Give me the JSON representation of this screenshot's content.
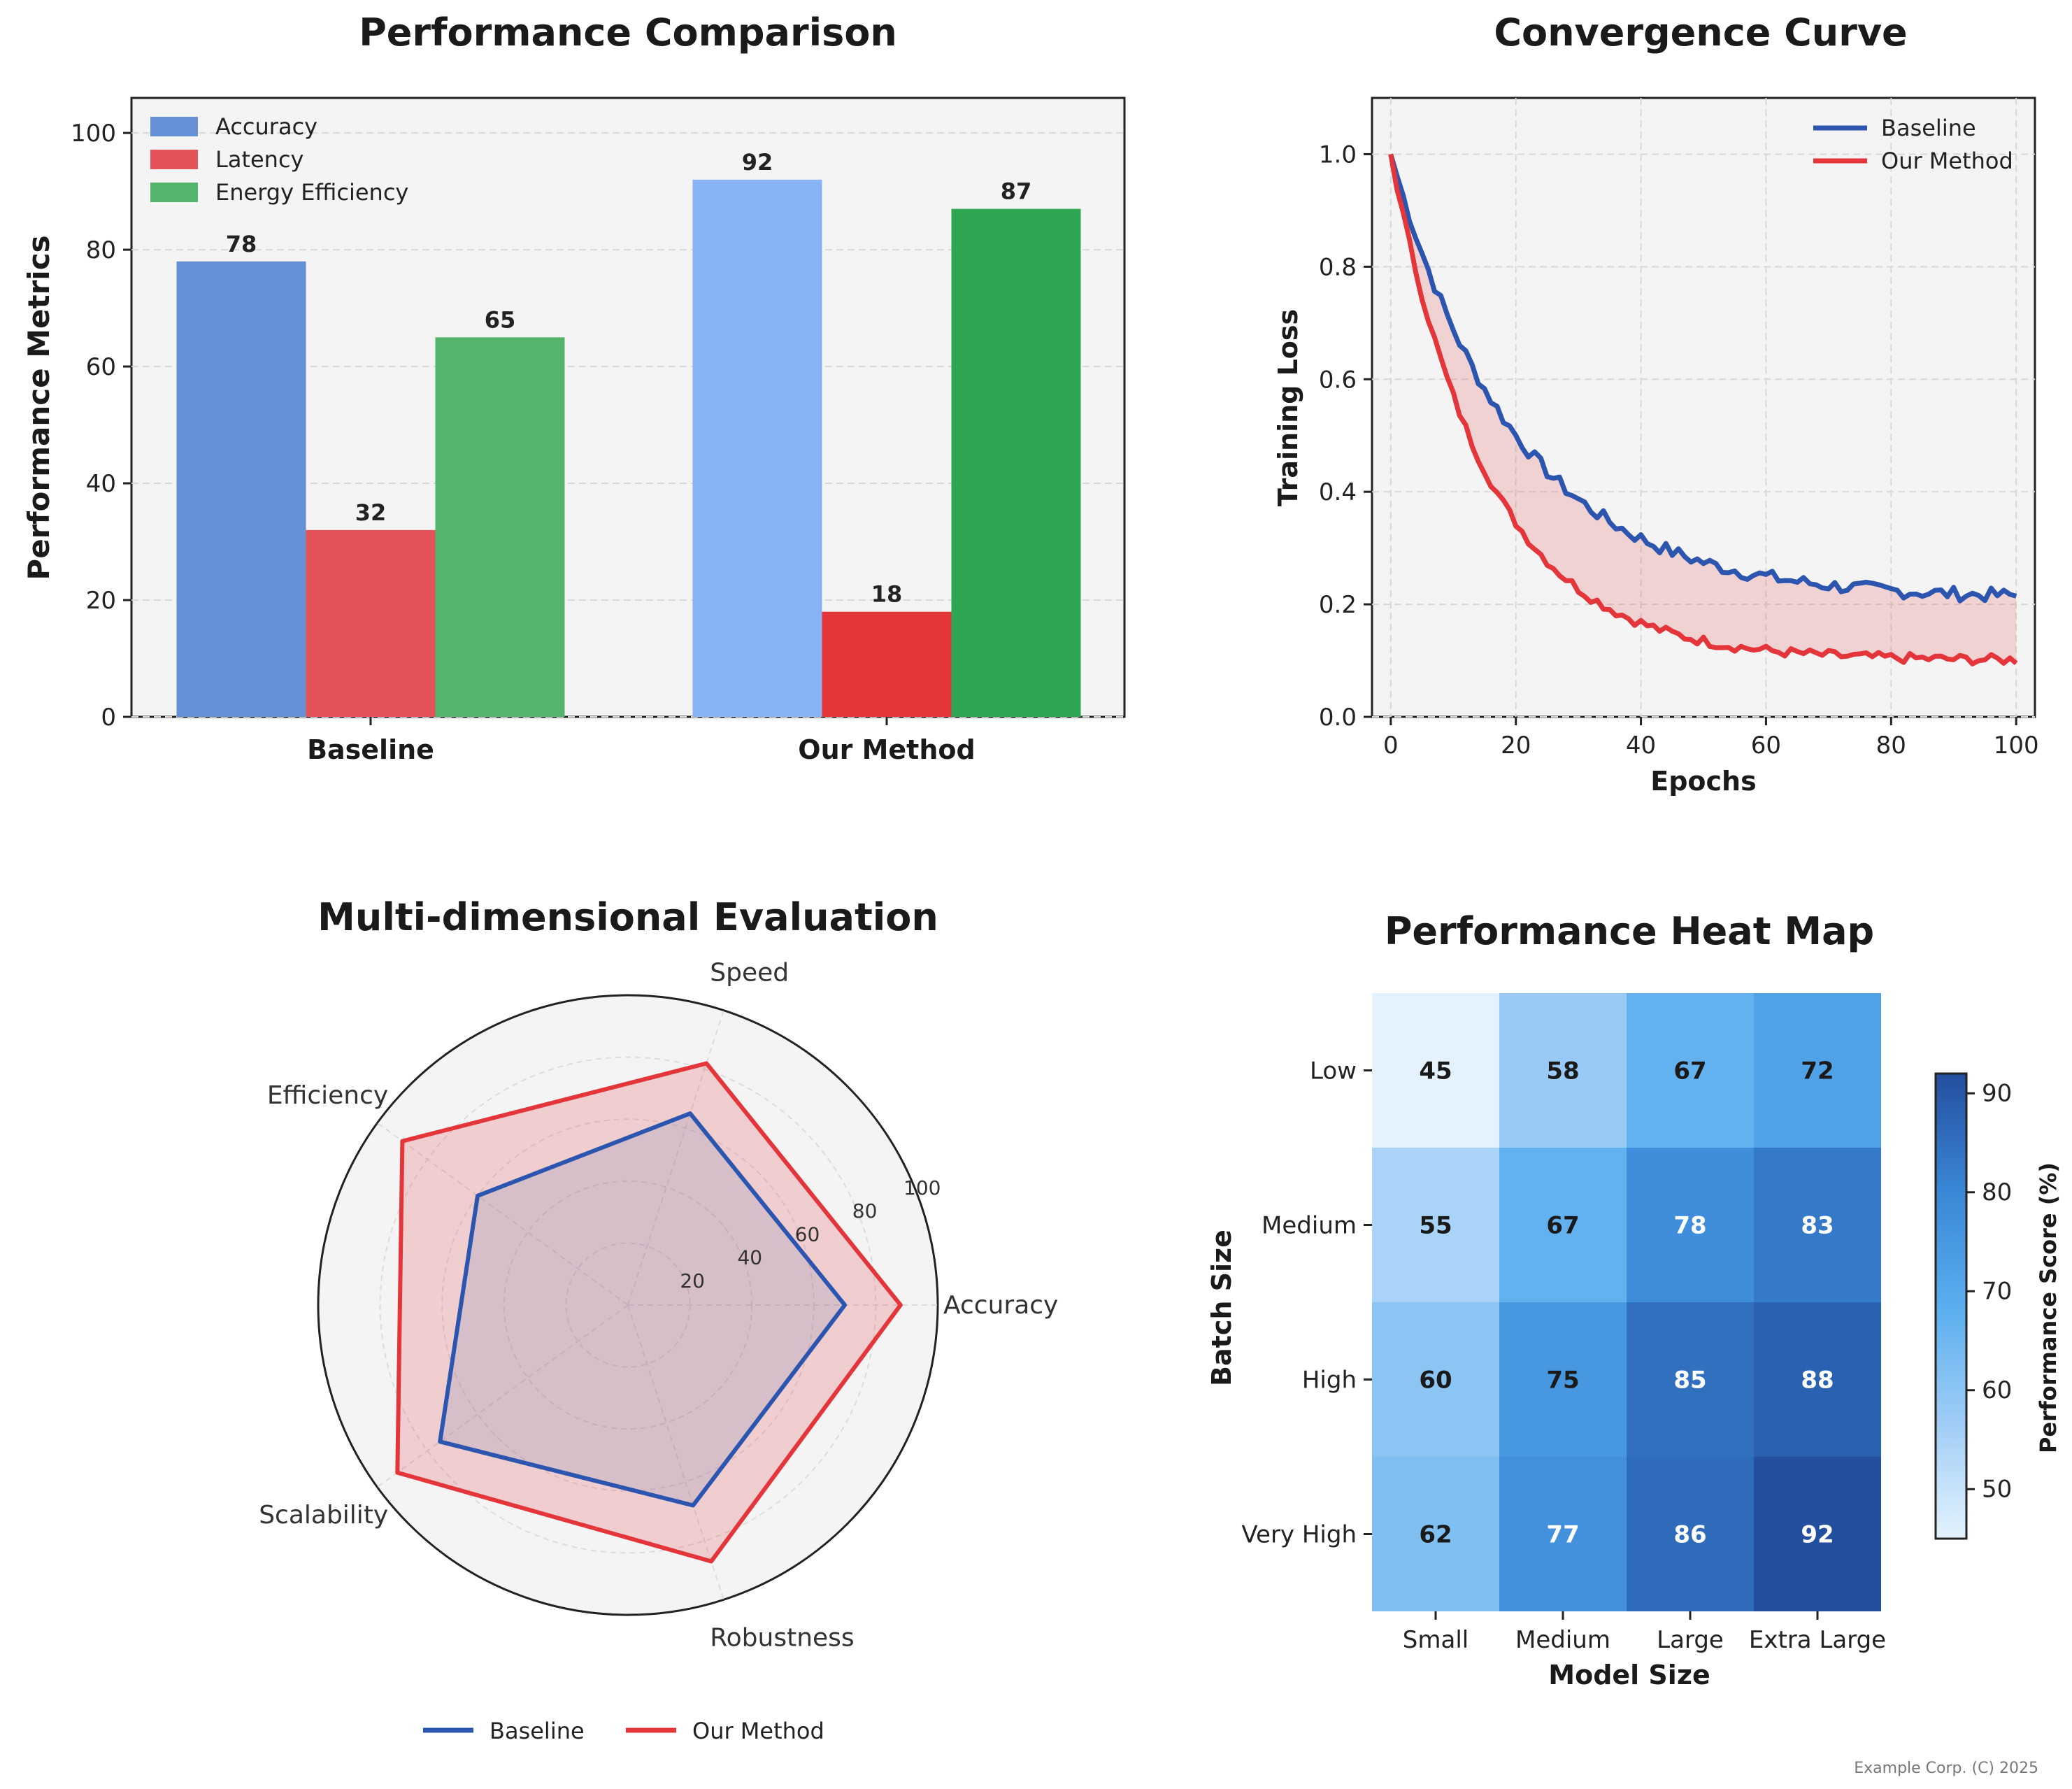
{
  "colors": {
    "baseline": "#2c55b0",
    "ours": "#e3353a",
    "accuracy": [
      "#6590d6",
      "#88b3f6"
    ],
    "latency": [
      "#e5535a",
      "#e3353a"
    ],
    "energy": [
      "#55b46b",
      "#2fa651"
    ],
    "panel_bg": "#f4f4f4"
  },
  "watermark": "Example Corp. (C) 2025",
  "chart_data": [
    {
      "type": "bar",
      "title": "Performance Comparison",
      "xlabel": "",
      "ylabel": "Performance Metrics",
      "categories": [
        "Baseline",
        "Our Method"
      ],
      "series": [
        {
          "name": "Accuracy",
          "values": [
            78,
            92
          ]
        },
        {
          "name": "Latency",
          "values": [
            32,
            18
          ]
        },
        {
          "name": "Energy Efficiency",
          "values": [
            65,
            87
          ]
        }
      ],
      "ylim": [
        0,
        106
      ],
      "yticks": [
        "0",
        "20",
        "40",
        "60",
        "80",
        "100"
      ],
      "legend": "top-left",
      "grid": true
    },
    {
      "type": "line",
      "title": "Convergence Curve",
      "xlabel": "Epochs",
      "ylabel": "Training Loss",
      "xlim": [
        -3,
        103
      ],
      "ylim": [
        0,
        1.1
      ],
      "xticks": [
        "0",
        "20",
        "40",
        "60",
        "80",
        "100"
      ],
      "yticks": [
        "0.0",
        "0.2",
        "0.4",
        "0.6",
        "0.8",
        "1.0"
      ],
      "series": [
        {
          "name": "Baseline",
          "start": 1.0,
          "end": 0.21,
          "rate": 0.05,
          "epochs": 100
        },
        {
          "name": "Our Method",
          "start": 1.0,
          "end": 0.1,
          "rate": 0.065,
          "epochs": 100
        }
      ],
      "fill_between": true,
      "legend": "top-right",
      "grid": true
    },
    {
      "type": "radar",
      "title": "Multi-dimensional Evaluation",
      "categories": [
        "Accuracy",
        "Speed",
        "Efficiency",
        "Scalability",
        "Robustness"
      ],
      "rticks": [
        "20",
        "40",
        "60",
        "80",
        "100"
      ],
      "rlim": [
        0,
        100
      ],
      "series": [
        {
          "name": "Baseline",
          "values": [
            70,
            65,
            60,
            75,
            68
          ]
        },
        {
          "name": "Our Method",
          "values": [
            88,
            82,
            90,
            92,
            87
          ]
        }
      ],
      "legend": "bottom"
    },
    {
      "type": "heatmap",
      "title": "Performance Heat Map",
      "xlabel": "Model Size",
      "ylabel": "Batch Size",
      "x_categories": [
        "Small",
        "Medium",
        "Large",
        "Extra Large"
      ],
      "y_categories": [
        "Low",
        "Medium",
        "High",
        "Very High"
      ],
      "values": [
        [
          45,
          58,
          67,
          72
        ],
        [
          55,
          67,
          78,
          83
        ],
        [
          60,
          75,
          85,
          88
        ],
        [
          62,
          77,
          86,
          92
        ]
      ],
      "colorbar_label": "Performance Score (%)",
      "colorbar_range": [
        45,
        92
      ],
      "colorbar_ticks": [
        "50",
        "60",
        "70",
        "80",
        "90"
      ]
    }
  ]
}
